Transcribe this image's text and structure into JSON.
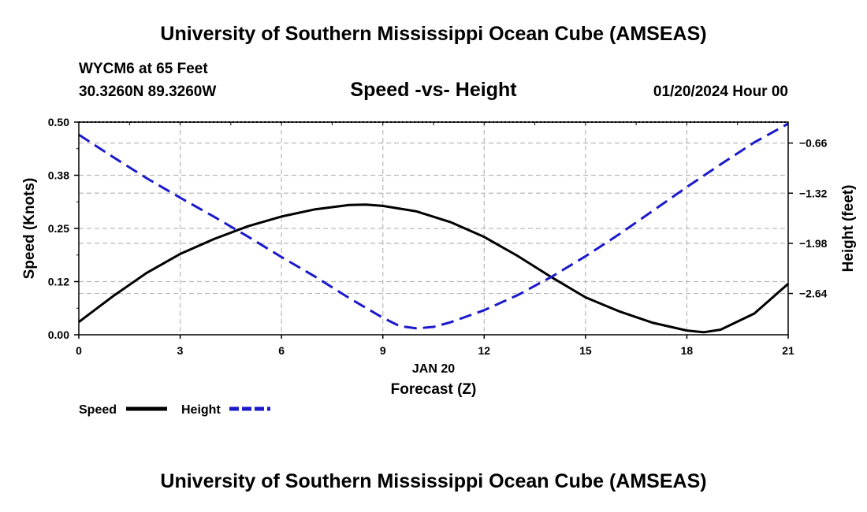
{
  "header": {
    "title": "University of Southern Mississippi Ocean Cube (AMSEAS)",
    "station": "WYCM6 at 65 Feet",
    "coords": "30.3260N  89.3260W",
    "subtitle": "Speed -vs- Height",
    "datetime": "01/20/2024 Hour 00"
  },
  "footer": {
    "title": "University of Southern Mississippi Ocean Cube (AMSEAS)"
  },
  "chart_data": {
    "type": "line",
    "title": "Speed -vs- Height",
    "xlabel": "Forecast (Z)",
    "xlabel_date": "JAN 20",
    "ylabel_left": "Speed (Knots)",
    "ylabel_right": "Height (feet)",
    "xlim": [
      0,
      21
    ],
    "ylim_left": [
      0,
      0.5
    ],
    "ylim_right": [
      -3.184,
      -0.384
    ],
    "x_ticks": [
      0,
      3,
      6,
      9,
      12,
      15,
      18,
      21
    ],
    "x_tick_labels": [
      "0",
      "3",
      "6",
      "9",
      "12",
      "15",
      "18",
      "21"
    ],
    "y_left_ticks": [
      0.0,
      0.125,
      0.25,
      0.375,
      0.5
    ],
    "y_left_tick_labels": [
      "0.00",
      "0.12",
      "0.25",
      "0.38",
      "0.50"
    ],
    "y_right_ticks": [
      -0.66,
      -1.32,
      -1.98,
      -2.64
    ],
    "y_right_tick_labels": [
      "−0.66",
      "−1.32",
      "−1.98",
      "−2.64"
    ],
    "grid": true,
    "legend_position": "bottom-left",
    "series": [
      {
        "name": "Speed",
        "axis": "left",
        "color": "#000000",
        "dash": "solid",
        "x": [
          0,
          1,
          2,
          3,
          4,
          5,
          6,
          7,
          8,
          8.5,
          9,
          10,
          11,
          12,
          13,
          14,
          15,
          16,
          17,
          18,
          18.5,
          19,
          20,
          21
        ],
        "y": [
          0.03,
          0.09,
          0.145,
          0.19,
          0.225,
          0.255,
          0.278,
          0.295,
          0.305,
          0.306,
          0.303,
          0.29,
          0.265,
          0.23,
          0.185,
          0.135,
          0.088,
          0.055,
          0.028,
          0.01,
          0.006,
          0.012,
          0.05,
          0.12
        ]
      },
      {
        "name": "Height",
        "axis": "right",
        "color": "#1a1acc",
        "dash": "dashed",
        "x": [
          0,
          1,
          2,
          3,
          4,
          5,
          6,
          7,
          8,
          9,
          9.5,
          10,
          10.5,
          11,
          12,
          13,
          14,
          15,
          16,
          17,
          18,
          19,
          20,
          21
        ],
        "y": [
          -0.55,
          -0.84,
          -1.12,
          -1.38,
          -1.63,
          -1.89,
          -2.16,
          -2.42,
          -2.7,
          -2.96,
          -3.07,
          -3.1,
          -3.08,
          -3.02,
          -2.86,
          -2.66,
          -2.42,
          -2.15,
          -1.86,
          -1.55,
          -1.24,
          -0.94,
          -0.65,
          -0.34
        ]
      }
    ]
  }
}
